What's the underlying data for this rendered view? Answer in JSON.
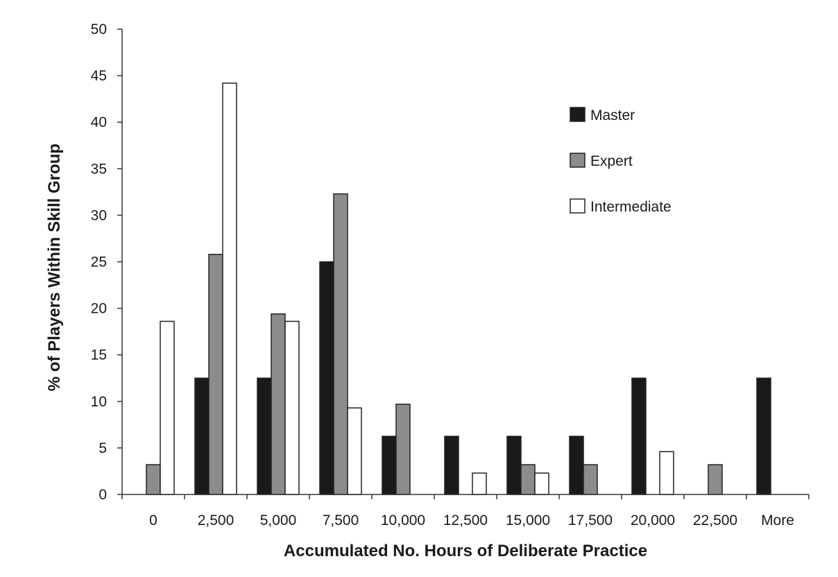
{
  "chart_data": {
    "type": "bar",
    "title": "",
    "xlabel": "Accumulated No. Hours of Deliberate Practice",
    "ylabel": "% of Players Within Skill Group",
    "categories": [
      "0",
      "2,500",
      "5,000",
      "7,500",
      "10,000",
      "12,500",
      "15,000",
      "17,500",
      "20,000",
      "22,500",
      "More"
    ],
    "ylim": [
      0,
      50
    ],
    "yticks": [
      0,
      5,
      10,
      15,
      20,
      25,
      30,
      35,
      40,
      45,
      50
    ],
    "grid": false,
    "legend_position": "top-right",
    "series": [
      {
        "name": "Master",
        "color": "#1a1a1a",
        "values": [
          0,
          12.5,
          12.5,
          25,
          6.25,
          6.25,
          6.25,
          6.25,
          12.5,
          0,
          12.5
        ]
      },
      {
        "name": "Expert",
        "color": "#8c8c8c",
        "values": [
          3.2,
          25.8,
          19.4,
          32.3,
          9.7,
          0,
          3.2,
          3.2,
          0,
          3.2,
          0
        ]
      },
      {
        "name": "Intermediate",
        "color": "#ffffff",
        "values": [
          18.6,
          44.2,
          18.6,
          9.3,
          0,
          2.3,
          2.3,
          0,
          4.6,
          0,
          0
        ]
      }
    ]
  }
}
